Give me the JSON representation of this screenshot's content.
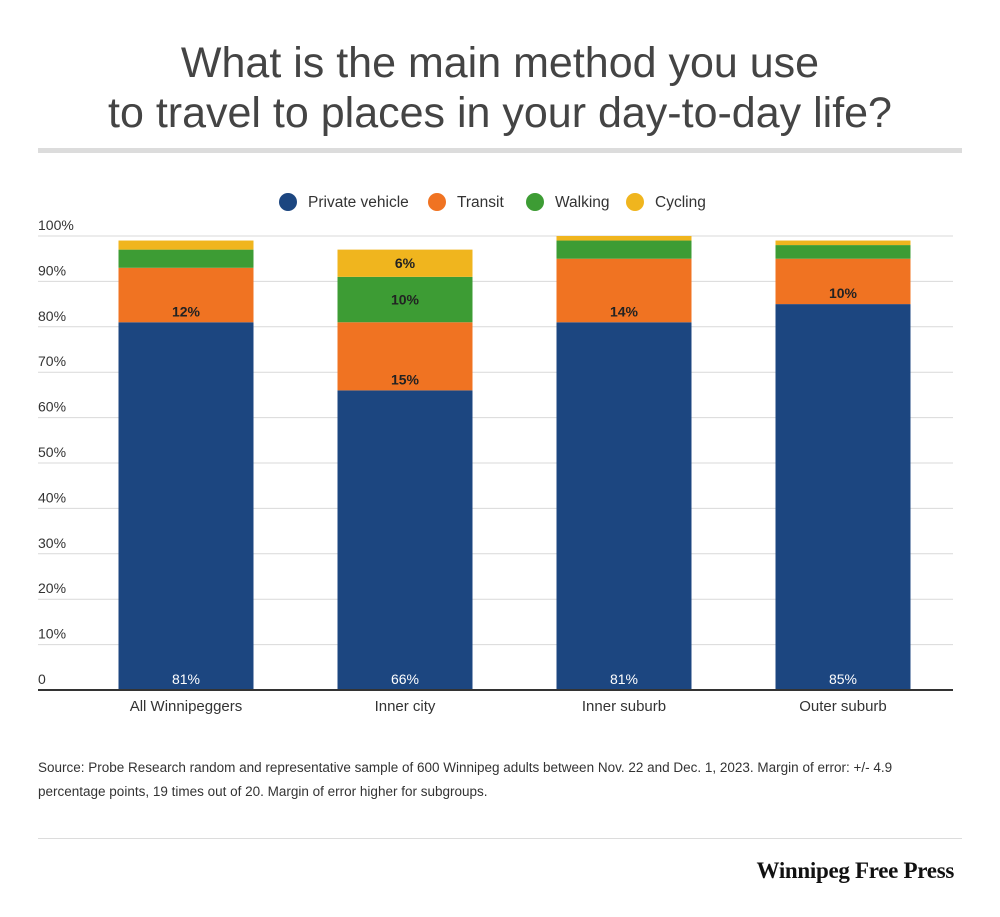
{
  "header": {
    "title_line1": "What is the main method you use",
    "title_line2": "to travel to places in your day-to-day life?"
  },
  "footer": {
    "source": "Source: Probe Research random and representative sample of 600 Winnipeg adults between Nov. 22 and Dec. 1, 2023. Margin of error: +/- 4.9 percentage points, 19 times out of 20. Margin of error higher for subgroups.",
    "brand": "Winnipeg Free Press"
  },
  "chart_data": {
    "type": "bar",
    "stacked": true,
    "title": "What is the main method you use to travel to places in your day-to-day life?",
    "xlabel": "",
    "ylabel": "",
    "ylim": [
      0,
      100
    ],
    "y_ticks": [
      {
        "value": 0,
        "label": "0"
      },
      {
        "value": 10,
        "label": "10%"
      },
      {
        "value": 20,
        "label": "20%"
      },
      {
        "value": 30,
        "label": "30%"
      },
      {
        "value": 40,
        "label": "40%"
      },
      {
        "value": 50,
        "label": "50%"
      },
      {
        "value": 60,
        "label": "60%"
      },
      {
        "value": 70,
        "label": "70%"
      },
      {
        "value": 80,
        "label": "80%"
      },
      {
        "value": 90,
        "label": "90%"
      },
      {
        "value": 100,
        "label": "100%"
      }
    ],
    "legend_position": "top-center",
    "categories": [
      "All Winnipeggers",
      "Inner city",
      "Inner suburb",
      "Outer suburb"
    ],
    "series": [
      {
        "name": "Private vehicle",
        "color": "#1c4680",
        "values": [
          81,
          66,
          81,
          85
        ],
        "labels": [
          "81%",
          "66%",
          "81%",
          "85%"
        ]
      },
      {
        "name": "Transit",
        "color": "#f07322",
        "values": [
          12,
          15,
          14,
          10
        ],
        "labels": [
          "12%",
          "15%",
          "14%",
          "10%"
        ]
      },
      {
        "name": "Walking",
        "color": "#3d9c34",
        "values": [
          4,
          10,
          4,
          3
        ],
        "labels": [
          "",
          "10%",
          "",
          ""
        ]
      },
      {
        "name": "Cycling",
        "color": "#f0b51e",
        "values": [
          2,
          6,
          1,
          1
        ],
        "labels": [
          "",
          "6%",
          "",
          ""
        ]
      }
    ]
  }
}
